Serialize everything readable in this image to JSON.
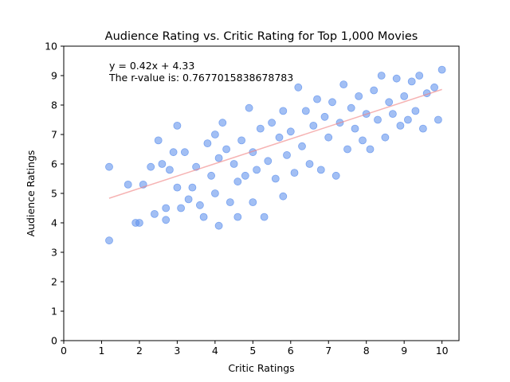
{
  "chart_data": {
    "type": "scatter",
    "title": "Audience Rating vs. Critic Rating for Top 1,000 Movies",
    "xlabel": "Critic Ratings",
    "ylabel": "Audience Ratings",
    "xlim": [
      0,
      10.45
    ],
    "ylim": [
      0,
      10
    ],
    "x_ticks": [
      "0",
      "1",
      "2",
      "3",
      "4",
      "5",
      "6",
      "7",
      "8",
      "9",
      "10"
    ],
    "y_ticks": [
      "0",
      "1",
      "2",
      "3",
      "4",
      "5",
      "6",
      "7",
      "8",
      "9",
      "10"
    ],
    "grid": false,
    "point_color": "#6495ED",
    "regression": {
      "slope": 0.42,
      "intercept": 4.33,
      "x_range": [
        1.2,
        10.0
      ],
      "color": "#F08080"
    },
    "annotations": [
      {
        "text": "y = 0.42x + 4.33",
        "color": "#FF0000"
      },
      {
        "text": "The r-value is: 0.7677015838678783",
        "color": "#FF0000"
      }
    ],
    "series": [
      {
        "points": [
          [
            1.2,
            3.4
          ],
          [
            1.2,
            5.9
          ],
          [
            1.7,
            5.3
          ],
          [
            1.9,
            4.0
          ],
          [
            2.0,
            4.0
          ],
          [
            2.1,
            5.3
          ],
          [
            2.3,
            5.9
          ],
          [
            2.4,
            4.3
          ],
          [
            2.5,
            6.8
          ],
          [
            2.6,
            6.0
          ],
          [
            2.7,
            4.1
          ],
          [
            2.7,
            4.5
          ],
          [
            2.8,
            5.8
          ],
          [
            2.9,
            6.4
          ],
          [
            3.0,
            5.2
          ],
          [
            3.0,
            7.3
          ],
          [
            3.1,
            4.5
          ],
          [
            3.2,
            6.4
          ],
          [
            3.3,
            4.8
          ],
          [
            3.4,
            5.2
          ],
          [
            3.5,
            5.9
          ],
          [
            3.6,
            4.6
          ],
          [
            3.7,
            4.2
          ],
          [
            3.8,
            6.7
          ],
          [
            3.9,
            5.6
          ],
          [
            4.0,
            5.0
          ],
          [
            4.0,
            7.0
          ],
          [
            4.1,
            3.9
          ],
          [
            4.1,
            6.2
          ],
          [
            4.2,
            7.4
          ],
          [
            4.3,
            6.5
          ],
          [
            4.4,
            4.7
          ],
          [
            4.5,
            6.0
          ],
          [
            4.6,
            5.4
          ],
          [
            4.6,
            4.2
          ],
          [
            4.7,
            6.8
          ],
          [
            4.8,
            5.6
          ],
          [
            4.9,
            7.9
          ],
          [
            5.0,
            6.4
          ],
          [
            5.0,
            4.7
          ],
          [
            5.1,
            5.8
          ],
          [
            5.2,
            7.2
          ],
          [
            5.3,
            4.2
          ],
          [
            5.4,
            6.1
          ],
          [
            5.5,
            7.4
          ],
          [
            5.6,
            5.5
          ],
          [
            5.7,
            6.9
          ],
          [
            5.8,
            4.9
          ],
          [
            5.8,
            7.8
          ],
          [
            5.9,
            6.3
          ],
          [
            6.0,
            7.1
          ],
          [
            6.1,
            5.7
          ],
          [
            6.2,
            8.6
          ],
          [
            6.3,
            6.6
          ],
          [
            6.4,
            7.8
          ],
          [
            6.5,
            6.0
          ],
          [
            6.6,
            7.3
          ],
          [
            6.7,
            8.2
          ],
          [
            6.8,
            5.8
          ],
          [
            6.9,
            7.6
          ],
          [
            7.0,
            6.9
          ],
          [
            7.1,
            8.1
          ],
          [
            7.2,
            5.6
          ],
          [
            7.3,
            7.4
          ],
          [
            7.4,
            8.7
          ],
          [
            7.5,
            6.5
          ],
          [
            7.6,
            7.9
          ],
          [
            7.7,
            7.2
          ],
          [
            7.8,
            8.3
          ],
          [
            7.9,
            6.8
          ],
          [
            8.0,
            7.7
          ],
          [
            8.1,
            6.5
          ],
          [
            8.2,
            8.5
          ],
          [
            8.3,
            7.5
          ],
          [
            8.4,
            9.0
          ],
          [
            8.5,
            6.9
          ],
          [
            8.6,
            8.1
          ],
          [
            8.7,
            7.7
          ],
          [
            8.8,
            8.9
          ],
          [
            8.9,
            7.3
          ],
          [
            9.0,
            8.3
          ],
          [
            9.1,
            7.5
          ],
          [
            9.2,
            8.8
          ],
          [
            9.3,
            7.8
          ],
          [
            9.4,
            9.0
          ],
          [
            9.5,
            7.2
          ],
          [
            9.6,
            8.4
          ],
          [
            9.8,
            8.6
          ],
          [
            9.9,
            7.5
          ],
          [
            10.0,
            9.2
          ]
        ]
      }
    ]
  }
}
